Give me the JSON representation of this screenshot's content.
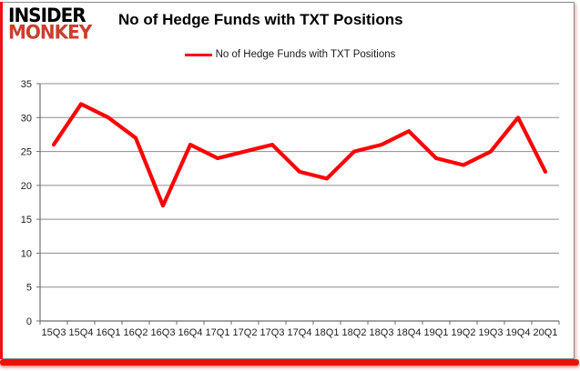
{
  "branding": {
    "logo_line1": "INSIDER",
    "logo_line2": "MONKEY",
    "logo_color_primary": "#000000",
    "logo_color_secondary": "#c8402f"
  },
  "header": {
    "title": "No of Hedge Funds with TXT Positions"
  },
  "legend": {
    "label": "No of Hedge Funds with TXT Positions",
    "marker_color": "#ff0000"
  },
  "colors": {
    "accent_red": "#e8140c",
    "series_red": "#ff0000",
    "grid": "#8c8c8c",
    "axis": "#6e6e6e",
    "tick_text": "#1c1c1c",
    "card_border": "#8a8a8a",
    "background": "#ffffff"
  },
  "chart_data": {
    "type": "line",
    "title": "No of Hedge Funds with TXT Positions",
    "categories": [
      "15Q3",
      "15Q4",
      "16Q1",
      "16Q2",
      "16Q3",
      "16Q4",
      "17Q1",
      "17Q2",
      "17Q3",
      "17Q4",
      "18Q1",
      "18Q2",
      "18Q3",
      "18Q4",
      "19Q1",
      "19Q2",
      "19Q3",
      "19Q4",
      "20Q1"
    ],
    "series": [
      {
        "name": "No of Hedge Funds with TXT Positions",
        "color": "#ff0000",
        "values": [
          26,
          32,
          30,
          27,
          17,
          26,
          24,
          25,
          26,
          22,
          21,
          25,
          26,
          28,
          24,
          23,
          25,
          30,
          22
        ]
      }
    ],
    "ylim": [
      0,
      35
    ],
    "ytick_step": 5,
    "yticks": [
      0,
      5,
      10,
      15,
      20,
      25,
      30,
      35
    ],
    "grid": "horizontal",
    "legend_position": "top",
    "xlabel": "",
    "ylabel": ""
  }
}
